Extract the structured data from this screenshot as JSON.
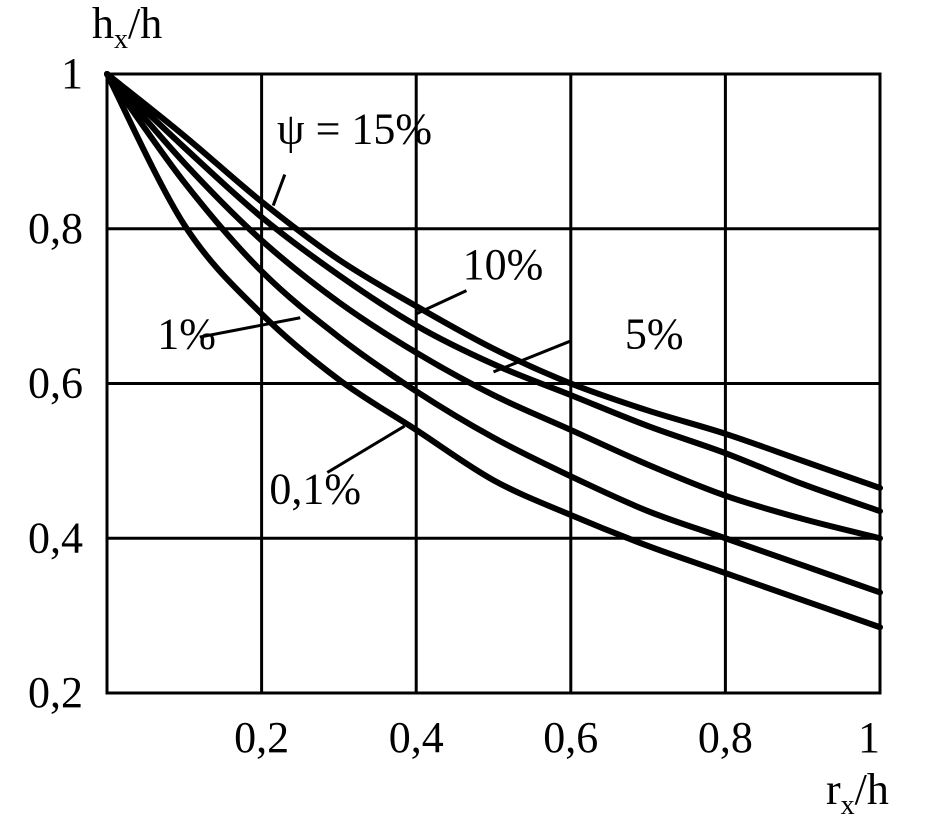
{
  "chart_data": {
    "type": "line",
    "ylabel": {
      "main": "h",
      "sub": "x",
      "rest": "/h"
    },
    "xlabel": {
      "main": "r",
      "sub": "x",
      "rest": "/h"
    },
    "xlim": [
      0,
      1
    ],
    "ylim": [
      0.2,
      1
    ],
    "grid": true,
    "x_ticks": [
      {
        "value": 0.2,
        "label": "0,2"
      },
      {
        "value": 0.4,
        "label": "0,4"
      },
      {
        "value": 0.6,
        "label": "0,6"
      },
      {
        "value": 0.8,
        "label": "0,8"
      },
      {
        "value": 1.0,
        "label": "1"
      }
    ],
    "y_ticks": [
      {
        "value": 0.2,
        "label": "0,2"
      },
      {
        "value": 0.4,
        "label": "0,4"
      },
      {
        "value": 0.6,
        "label": "0,6"
      },
      {
        "value": 0.8,
        "label": "0,8"
      },
      {
        "value": 1.0,
        "label": "1"
      }
    ],
    "x": [
      0,
      0.1,
      0.2,
      0.3,
      0.4,
      0.5,
      0.6,
      0.7,
      0.8,
      0.9,
      1.0
    ],
    "series": [
      {
        "name": "ψ = 15%",
        "label_text": "ψ = 15%",
        "label_pos": [
          0.22,
          0.91
        ],
        "leader": [
          [
            0.23,
            0.87
          ],
          [
            0.215,
            0.83
          ]
        ],
        "values": [
          1.0,
          0.92,
          0.835,
          0.76,
          0.7,
          0.645,
          0.6,
          0.565,
          0.535,
          0.5,
          0.465
        ]
      },
      {
        "name": "10%",
        "label_text": "10%",
        "label_pos": [
          0.46,
          0.735
        ],
        "leader": [
          [
            0.465,
            0.72
          ],
          [
            0.4,
            0.69
          ]
        ],
        "values": [
          1.0,
          0.905,
          0.815,
          0.74,
          0.675,
          0.625,
          0.585,
          0.545,
          0.51,
          0.47,
          0.435
        ]
      },
      {
        "name": "5%",
        "label_text": "5%",
        "label_pos": [
          0.67,
          0.645
        ],
        "leader": [
          [
            0.6,
            0.655
          ],
          [
            0.5,
            0.615
          ]
        ],
        "values": [
          1.0,
          0.885,
          0.785,
          0.705,
          0.64,
          0.585,
          0.54,
          0.495,
          0.455,
          0.425,
          0.4
        ]
      },
      {
        "name": "1%",
        "label_text": "1%",
        "label_pos": [
          0.065,
          0.645
        ],
        "leader": [
          [
            0.12,
            0.66
          ],
          [
            0.25,
            0.685
          ]
        ],
        "values": [
          1.0,
          0.86,
          0.745,
          0.66,
          0.59,
          0.53,
          0.48,
          0.435,
          0.4,
          0.365,
          0.33
        ]
      },
      {
        "name": "0,1%",
        "label_text": "0,1%",
        "label_pos": [
          0.21,
          0.445
        ],
        "leader": [
          [
            0.285,
            0.485
          ],
          [
            0.385,
            0.545
          ]
        ],
        "values": [
          1.0,
          0.805,
          0.69,
          0.605,
          0.54,
          0.475,
          0.43,
          0.39,
          0.355,
          0.32,
          0.285
        ]
      }
    ]
  }
}
